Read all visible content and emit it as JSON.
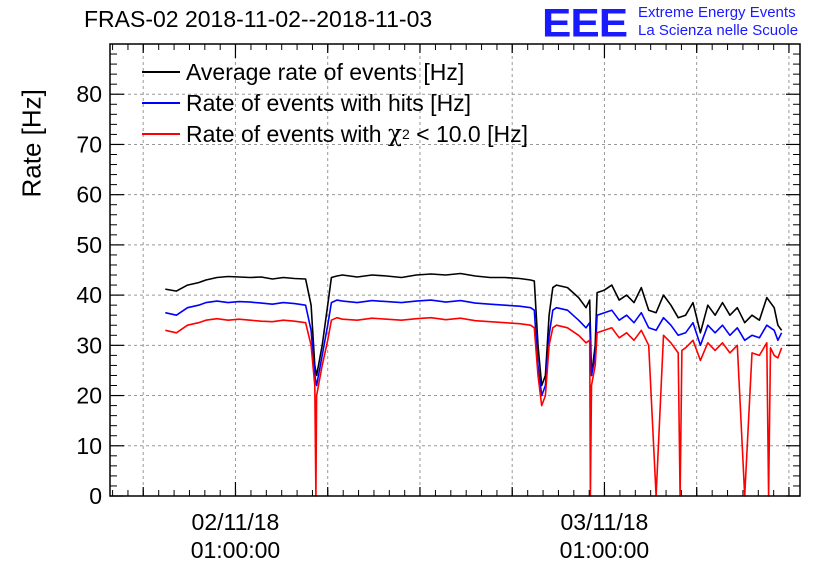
{
  "chart_data": {
    "type": "line",
    "title": "FRAS-02 2018-11-02--2018-11-03",
    "ylabel": "Rate [Hz]",
    "ylim": [
      0,
      90
    ],
    "yticks": [
      0,
      10,
      20,
      30,
      40,
      50,
      60,
      70,
      80
    ],
    "xlim": [
      -0.34,
      1.53
    ],
    "xticks": [
      {
        "value": 0,
        "date": "02/11/18",
        "time": "01:00:00"
      },
      {
        "value": 1,
        "date": "03/11/18",
        "time": "01:00:00"
      }
    ],
    "grid": true,
    "legend_position": "top-left",
    "series": [
      {
        "name": "Average rate of events [Hz]",
        "legend_label": "Average rate of events [Hz]",
        "color": "#000000",
        "x": [
          -0.19,
          -0.16,
          -0.13,
          -0.1,
          -0.08,
          -0.05,
          -0.02,
          0.01,
          0.04,
          0.07,
          0.1,
          0.13,
          0.16,
          0.19,
          0.205,
          0.215,
          0.22,
          0.235,
          0.25,
          0.26,
          0.275,
          0.29,
          0.33,
          0.37,
          0.41,
          0.45,
          0.49,
          0.53,
          0.57,
          0.61,
          0.65,
          0.69,
          0.73,
          0.77,
          0.8,
          0.81,
          0.82,
          0.83,
          0.84,
          0.85,
          0.86,
          0.87,
          0.9,
          0.93,
          0.95,
          0.96,
          0.965,
          0.975,
          0.98,
          1.0,
          1.02,
          1.04,
          1.06,
          1.08,
          1.1,
          1.12,
          1.14,
          1.16,
          1.18,
          1.2,
          1.22,
          1.24,
          1.26,
          1.28,
          1.3,
          1.32,
          1.34,
          1.36,
          1.38,
          1.4,
          1.42,
          1.44,
          1.46,
          1.47,
          1.48
        ],
        "y": [
          41.2,
          40.8,
          42.0,
          42.5,
          43.0,
          43.5,
          43.7,
          43.6,
          43.5,
          43.6,
          43.2,
          43.5,
          43.3,
          43.2,
          38.0,
          26.0,
          24.0,
          30.0,
          38.0,
          43.5,
          43.8,
          44.0,
          43.6,
          44.0,
          43.8,
          43.5,
          44.0,
          44.2,
          44.0,
          44.3,
          43.8,
          43.5,
          43.5,
          43.3,
          43.0,
          42.8,
          30.0,
          22.0,
          24.0,
          36.0,
          41.5,
          42.0,
          41.5,
          39.5,
          37.5,
          39.0,
          24.0,
          30.0,
          40.5,
          41.0,
          42.0,
          39.0,
          40.0,
          38.5,
          41.5,
          37.0,
          36.5,
          40.0,
          38.0,
          35.5,
          36.0,
          38.5,
          32.5,
          38.0,
          36.0,
          38.5,
          36.0,
          37.5,
          34.5,
          36.0,
          35.0,
          39.5,
          37.5,
          34.0,
          33.0
        ]
      },
      {
        "name": "Rate of events with hits [Hz]",
        "legend_label": "Rate of events with hits [Hz]",
        "color": "#0000ff",
        "x": [
          -0.19,
          -0.16,
          -0.13,
          -0.1,
          -0.08,
          -0.05,
          -0.02,
          0.01,
          0.04,
          0.07,
          0.1,
          0.13,
          0.16,
          0.19,
          0.205,
          0.215,
          0.22,
          0.235,
          0.25,
          0.26,
          0.275,
          0.29,
          0.33,
          0.37,
          0.41,
          0.45,
          0.49,
          0.53,
          0.57,
          0.61,
          0.65,
          0.69,
          0.73,
          0.77,
          0.8,
          0.81,
          0.82,
          0.83,
          0.84,
          0.85,
          0.86,
          0.87,
          0.9,
          0.93,
          0.95,
          0.96,
          0.965,
          0.975,
          0.98,
          1.0,
          1.02,
          1.04,
          1.06,
          1.08,
          1.1,
          1.12,
          1.14,
          1.16,
          1.18,
          1.2,
          1.22,
          1.24,
          1.26,
          1.28,
          1.3,
          1.32,
          1.34,
          1.36,
          1.38,
          1.4,
          1.42,
          1.44,
          1.46,
          1.47,
          1.48
        ],
        "y": [
          36.5,
          36.0,
          37.5,
          38.0,
          38.5,
          38.8,
          38.5,
          38.7,
          38.6,
          38.4,
          38.2,
          38.5,
          38.3,
          38.0,
          33.0,
          24.0,
          22.0,
          28.0,
          34.0,
          38.5,
          39.0,
          38.8,
          38.5,
          38.9,
          38.7,
          38.5,
          38.8,
          39.0,
          38.6,
          38.9,
          38.4,
          38.2,
          38.0,
          37.8,
          37.5,
          37.0,
          26.0,
          20.0,
          22.0,
          32.0,
          37.0,
          37.5,
          37.0,
          35.0,
          33.5,
          34.5,
          24.0,
          28.0,
          36.0,
          36.5,
          37.0,
          35.0,
          36.0,
          34.5,
          36.5,
          33.5,
          33.0,
          35.5,
          34.0,
          32.0,
          32.5,
          34.5,
          30.0,
          34.0,
          32.5,
          34.0,
          32.0,
          33.5,
          31.0,
          32.0,
          31.5,
          34.0,
          33.0,
          31.0,
          32.5
        ]
      },
      {
        "name": "Rate of events with chi2 < 10.0 [Hz]",
        "legend_label": "Rate of events with",
        "legend_symbol": "χ",
        "legend_exponent": "2",
        "legend_suffix": "< 10.0 [Hz]",
        "color": "#ff0000",
        "x": [
          -0.19,
          -0.16,
          -0.13,
          -0.1,
          -0.08,
          -0.05,
          -0.02,
          0.01,
          0.04,
          0.07,
          0.1,
          0.13,
          0.16,
          0.19,
          0.205,
          0.215,
          0.218,
          0.22,
          0.235,
          0.25,
          0.26,
          0.275,
          0.29,
          0.33,
          0.37,
          0.41,
          0.45,
          0.49,
          0.53,
          0.57,
          0.61,
          0.65,
          0.69,
          0.73,
          0.77,
          0.8,
          0.81,
          0.82,
          0.83,
          0.84,
          0.85,
          0.86,
          0.87,
          0.9,
          0.93,
          0.95,
          0.96,
          0.962,
          0.965,
          0.975,
          0.98,
          1.0,
          1.02,
          1.04,
          1.06,
          1.08,
          1.1,
          1.12,
          1.14,
          1.16,
          1.18,
          1.2,
          1.205,
          1.21,
          1.22,
          1.24,
          1.26,
          1.28,
          1.3,
          1.32,
          1.34,
          1.36,
          1.38,
          1.4,
          1.42,
          1.44,
          1.445,
          1.45,
          1.46,
          1.47,
          1.48
        ],
        "y": [
          33.0,
          32.5,
          34.0,
          34.5,
          35.0,
          35.3,
          35.0,
          35.2,
          35.0,
          34.8,
          34.7,
          35.0,
          34.8,
          34.5,
          30.0,
          22.0,
          0.0,
          20.0,
          26.0,
          31.0,
          35.0,
          35.5,
          35.2,
          35.0,
          35.4,
          35.2,
          35.0,
          35.3,
          35.5,
          35.1,
          35.4,
          34.9,
          34.7,
          34.5,
          34.3,
          34.0,
          33.5,
          24.0,
          18.0,
          20.0,
          30.0,
          33.5,
          34.0,
          33.5,
          32.0,
          30.5,
          31.0,
          0.0,
          22.0,
          26.0,
          32.5,
          33.0,
          33.5,
          31.5,
          32.5,
          31.0,
          33.0,
          30.0,
          0.0,
          32.0,
          30.5,
          28.5,
          0.0,
          29.0,
          29.5,
          31.0,
          27.0,
          30.5,
          29.0,
          30.5,
          28.5,
          30.0,
          0.0,
          28.5,
          28.0,
          30.5,
          0.0,
          29.5,
          28.0,
          27.5,
          29.5
        ]
      }
    ]
  },
  "logo": {
    "mark": "EEE",
    "line1": "Extreme Energy Events",
    "line2": "La Scienza nelle Scuole"
  }
}
